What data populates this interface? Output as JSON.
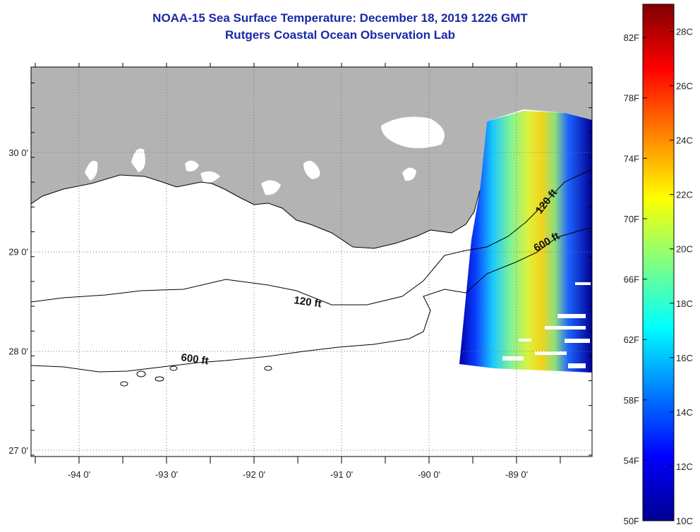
{
  "header": {
    "title_line1": "NOAA-15 Sea Surface Temperature:  December 18, 2019 1226 GMT",
    "title_line2": "Rutgers Coastal Ocean Observation Lab"
  },
  "map": {
    "lat_ticks": [
      {
        "value": 30,
        "label": "30 0'"
      },
      {
        "value": 29,
        "label": "29 0'"
      },
      {
        "value": 28,
        "label": "28 0'"
      },
      {
        "value": 27,
        "label": "27 0'"
      }
    ],
    "lon_ticks": [
      {
        "value": -94,
        "label": "-94 0'"
      },
      {
        "value": -93,
        "label": "-93 0'"
      },
      {
        "value": -92,
        "label": "-92 0'"
      },
      {
        "value": -91,
        "label": "-91 0'"
      },
      {
        "value": -90,
        "label": "-90 0'"
      },
      {
        "value": -89,
        "label": "-89 0'"
      }
    ],
    "contour_labels": {
      "c120_west": "120 ft",
      "c600_west": "600 ft",
      "c120_east": "120 ft",
      "c600_east": "600 ft"
    },
    "colors": {
      "land": "#b3b3b3",
      "grid": "#888888",
      "frame": "#000000"
    }
  },
  "colorbar": {
    "celsius_labels": [
      "28C",
      "26C",
      "24C",
      "22C",
      "20C",
      "18C",
      "16C",
      "14C",
      "12C",
      "10C"
    ],
    "fahrenheit_labels": [
      "82F",
      "78F",
      "74F",
      "70F",
      "66F",
      "62F",
      "58F",
      "54F",
      "50F"
    ],
    "min_c": 10,
    "max_c": 29,
    "colors": [
      "#00008f",
      "#0000ff",
      "#0080ff",
      "#00ffff",
      "#80ff80",
      "#ffff00",
      "#ff8000",
      "#ff0000",
      "#800000"
    ]
  }
}
